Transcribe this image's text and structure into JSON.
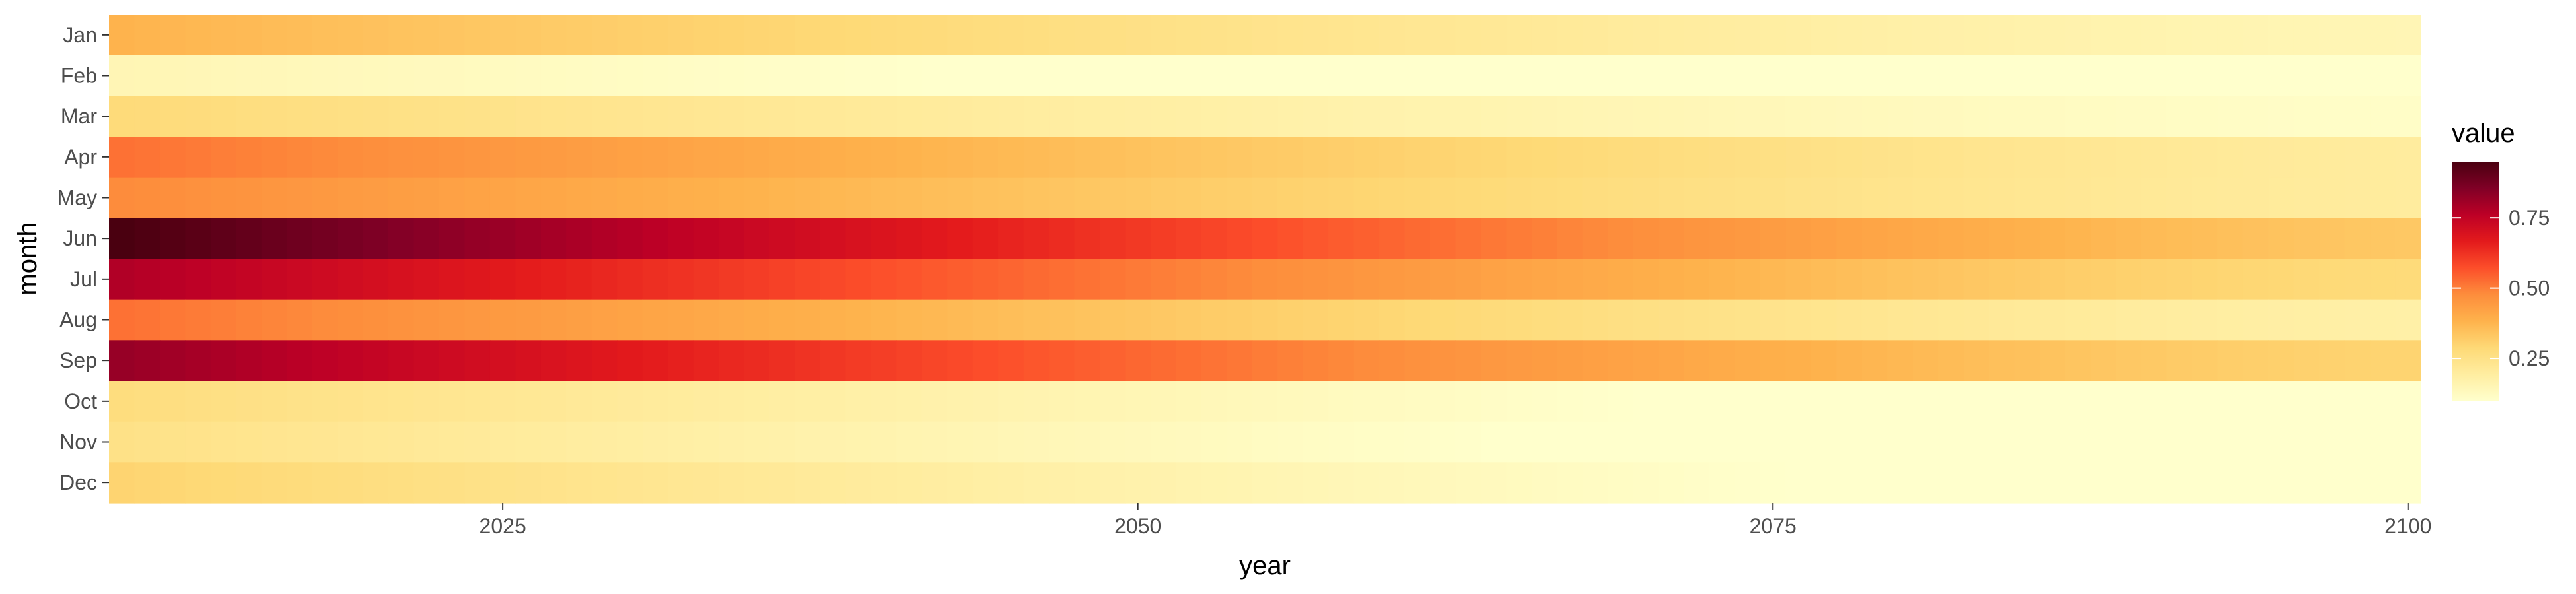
{
  "chart_data": {
    "type": "heatmap",
    "xlabel": "year",
    "ylabel": "month",
    "x_range": [
      2010,
      2100
    ],
    "x_ticks": [
      "2025",
      "2050",
      "2075",
      "2100"
    ],
    "months": [
      "Jan",
      "Feb",
      "Mar",
      "Apr",
      "May",
      "Jun",
      "Jul",
      "Aug",
      "Sep",
      "Oct",
      "Nov",
      "Dec"
    ],
    "legend": {
      "title": "value",
      "ticks": [
        "0.25",
        "0.50",
        "0.75"
      ],
      "range": [
        0.1,
        0.95
      ],
      "placement": "right"
    },
    "series": [
      {
        "month": "Jan",
        "start": 0.38,
        "end": 0.15
      },
      {
        "month": "Feb",
        "start": 0.15,
        "end": 0.04
      },
      {
        "month": "Mar",
        "start": 0.28,
        "end": 0.11
      },
      {
        "month": "Apr",
        "start": 0.52,
        "end": 0.2
      },
      {
        "month": "May",
        "start": 0.48,
        "end": 0.2
      },
      {
        "month": "Jun",
        "start": 0.95,
        "end": 0.33
      },
      {
        "month": "Jul",
        "start": 0.78,
        "end": 0.28
      },
      {
        "month": "Aug",
        "start": 0.52,
        "end": 0.18
      },
      {
        "month": "Sep",
        "start": 0.82,
        "end": 0.3
      },
      {
        "month": "Oct",
        "start": 0.27,
        "end": 0.05
      },
      {
        "month": "Nov",
        "start": 0.25,
        "end": 0.04
      },
      {
        "month": "Dec",
        "start": 0.3,
        "end": 0.06
      }
    ],
    "colors": [
      "#ffffcc",
      "#ffeda0",
      "#fed976",
      "#feb24c",
      "#fd8d3c",
      "#fc4e2a",
      "#e31a1c",
      "#bd0026",
      "#800026",
      "#4a0010"
    ]
  }
}
